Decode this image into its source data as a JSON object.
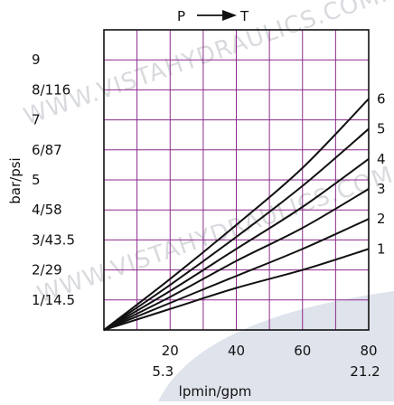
{
  "chart_data": {
    "type": "line",
    "title": "",
    "flow_direction": {
      "from": "P",
      "to": "T"
    },
    "xlabel": "lpmin/gpm",
    "ylabel": "bar/psi",
    "xlim": [
      0,
      80
    ],
    "ylim": [
      0,
      10
    ],
    "grid": true,
    "grid_color": "#8c2a8c",
    "x_ticks": [
      {
        "value": 20,
        "label": "20",
        "sub": "5.3"
      },
      {
        "value": 40,
        "label": "40",
        "sub": ""
      },
      {
        "value": 60,
        "label": "60",
        "sub": ""
      },
      {
        "value": 80,
        "label": "80",
        "sub": "21.2"
      }
    ],
    "y_ticks": [
      {
        "value": 1,
        "label": "1/14.5"
      },
      {
        "value": 2,
        "label": "2/29"
      },
      {
        "value": 3,
        "label": "3/43.5"
      },
      {
        "value": 4,
        "label": "4/58"
      },
      {
        "value": 5,
        "label": "5"
      },
      {
        "value": 6,
        "label": "6/87"
      },
      {
        "value": 7,
        "label": "7"
      },
      {
        "value": 8,
        "label": "8/116"
      },
      {
        "value": 9,
        "label": "9"
      }
    ],
    "series": [
      {
        "name": "1",
        "x": [
          0,
          20,
          40,
          60,
          80
        ],
        "y": [
          0,
          0.7,
          1.4,
          2.0,
          2.7
        ]
      },
      {
        "name": "2",
        "x": [
          0,
          20,
          40,
          60,
          80
        ],
        "y": [
          0,
          0.9,
          1.8,
          2.7,
          3.7
        ]
      },
      {
        "name": "3",
        "x": [
          0,
          20,
          40,
          60,
          80
        ],
        "y": [
          0,
          1.1,
          2.3,
          3.4,
          4.7
        ]
      },
      {
        "name": "4",
        "x": [
          0,
          20,
          40,
          60,
          80
        ],
        "y": [
          0,
          1.3,
          2.7,
          4.1,
          5.7
        ]
      },
      {
        "name": "5",
        "x": [
          0,
          20,
          40,
          60,
          80
        ],
        "y": [
          0,
          1.5,
          3.1,
          4.8,
          6.7
        ]
      },
      {
        "name": "6",
        "x": [
          0,
          20,
          40,
          60,
          80
        ],
        "y": [
          0,
          1.7,
          3.5,
          5.4,
          7.7
        ]
      }
    ],
    "line_color": "#111111"
  },
  "watermark": "WWW.VISTAHYDRAULICS.COM.BR",
  "background_shape_color": "#dfe3ec"
}
